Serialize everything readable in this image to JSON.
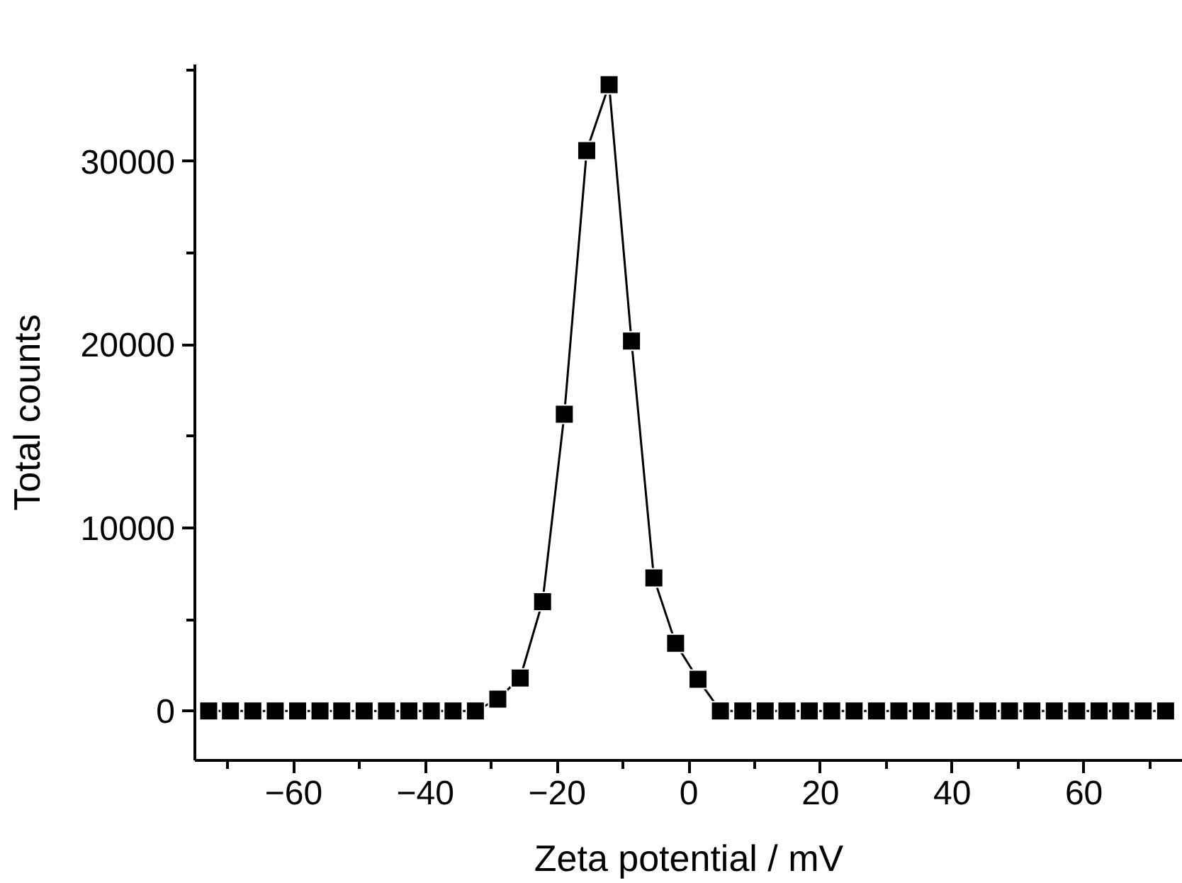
{
  "chart_data": {
    "type": "line",
    "xlabel": "Zeta potential / mV",
    "ylabel": "Total counts",
    "x": [
      -72.9,
      -69.6,
      -66.2,
      -62.8,
      -59.4,
      -56.0,
      -52.7,
      -49.3,
      -45.9,
      -42.5,
      -39.1,
      -35.8,
      -32.4,
      -29.0,
      -25.6,
      -22.2,
      -18.9,
      -15.5,
      -12.1,
      -8.7,
      -5.3,
      -2.0,
      1.4,
      4.8,
      8.2,
      11.6,
      14.9,
      18.3,
      21.7,
      25.1,
      28.5,
      31.9,
      35.3,
      38.7,
      42.0,
      45.4,
      48.7,
      52.1,
      55.5,
      58.9,
      62.3,
      65.6,
      69.0,
      72.4
    ],
    "series": [
      {
        "color": "#000000",
        "values": [
          0,
          0,
          0,
          0,
          0,
          0,
          0,
          0,
          0,
          0,
          0,
          0,
          0,
          650,
          1800,
          5970,
          16200,
          30600,
          34200,
          20200,
          7260,
          3690,
          1730,
          0,
          0,
          0,
          0,
          0,
          0,
          0,
          0,
          0,
          0,
          0,
          0,
          0,
          0,
          0,
          0,
          0,
          0,
          0,
          0,
          0
        ]
      }
    ],
    "xlim": [
      -75,
      75
    ],
    "xticks": [
      {
        "value": -70,
        "label": null
      },
      -60,
      {
        "value": -50,
        "label": null
      },
      -40,
      {
        "value": -30,
        "label": null
      },
      -20,
      {
        "value": -10,
        "label": null
      },
      0,
      {
        "value": 10,
        "label": null
      },
      20,
      {
        "value": 30,
        "label": null
      },
      40,
      {
        "value": 50,
        "label": null
      },
      60,
      {
        "value": 70,
        "label": null
      }
    ],
    "ylim": [
      -2700,
      35300
    ],
    "yticks": [
      0,
      {
        "value": 5000,
        "label": null
      },
      10000,
      {
        "value": 15000,
        "label": null
      },
      20000,
      {
        "value": 25000,
        "label": null
      },
      30000,
      {
        "value": 35000,
        "label": null
      }
    ],
    "grid": false,
    "marker": "square",
    "line_style": "solid"
  }
}
